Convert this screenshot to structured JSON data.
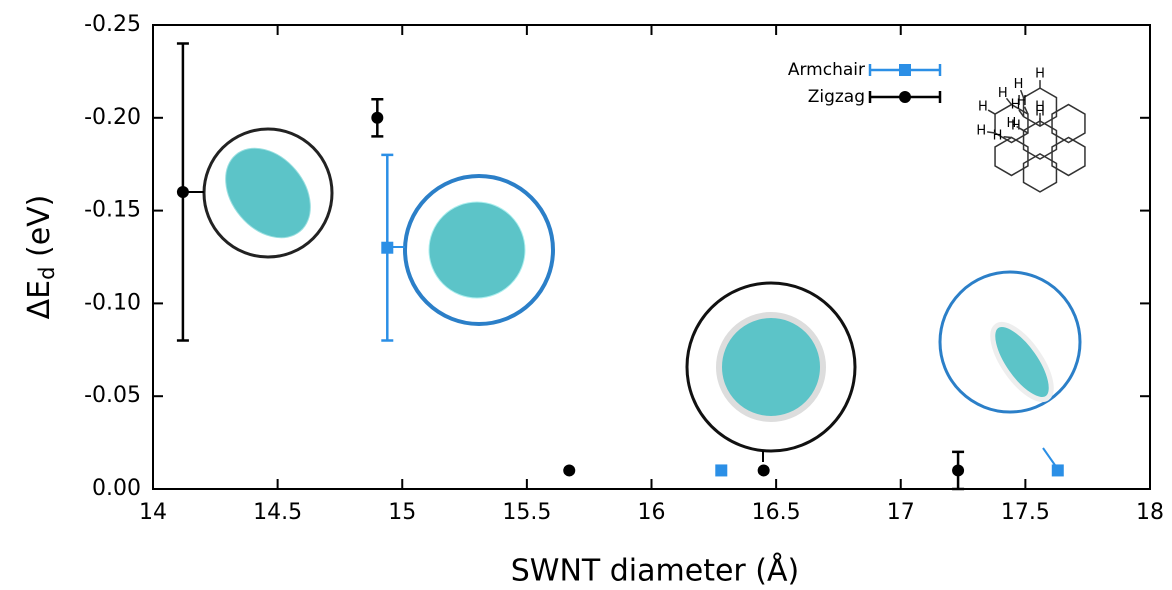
{
  "chart_data": {
    "type": "scatter",
    "x_label": "SWNT diameter (Å)",
    "y_label": [
      "ΔE",
      "d",
      " (eV)"
    ],
    "xlim": [
      14,
      18
    ],
    "xticks": [
      14,
      14.5,
      15,
      15.5,
      16,
      16.5,
      17,
      17.5,
      18
    ],
    "ylim": [
      0,
      -0.25
    ],
    "yticks": [
      {
        "value": 0,
        "label": "0.00"
      },
      {
        "value": -0.05,
        "label": "-0.05"
      },
      {
        "value": -0.1,
        "label": "-0.10"
      },
      {
        "value": -0.15,
        "label": "-0.15"
      },
      {
        "value": -0.2,
        "label": "-0.20"
      },
      {
        "value": -0.25,
        "label": "-0.25"
      }
    ],
    "legend": "top-right",
    "series": [
      {
        "name": "Armchair",
        "color": "#2b8fe6",
        "marker": "square",
        "x": [
          14.94,
          16.28,
          17.63
        ],
        "values": [
          -0.13,
          -0.01,
          -0.01
        ],
        "errors": [
          0.05,
          null,
          null
        ]
      },
      {
        "name": "Zigzag",
        "color": "#000000",
        "marker": "circle",
        "x": [
          14.12,
          14.9,
          15.67,
          16.45,
          17.23
        ],
        "values": [
          -0.16,
          -0.2,
          -0.01,
          -0.01,
          -0.01
        ],
        "errors": [
          0.08,
          0.01,
          null,
          null,
          0.01
        ]
      }
    ],
    "structure_labels": [
      "H",
      "H",
      "H",
      "H",
      "H",
      "H",
      "H",
      "H",
      "H",
      "H",
      "H",
      "H"
    ]
  }
}
